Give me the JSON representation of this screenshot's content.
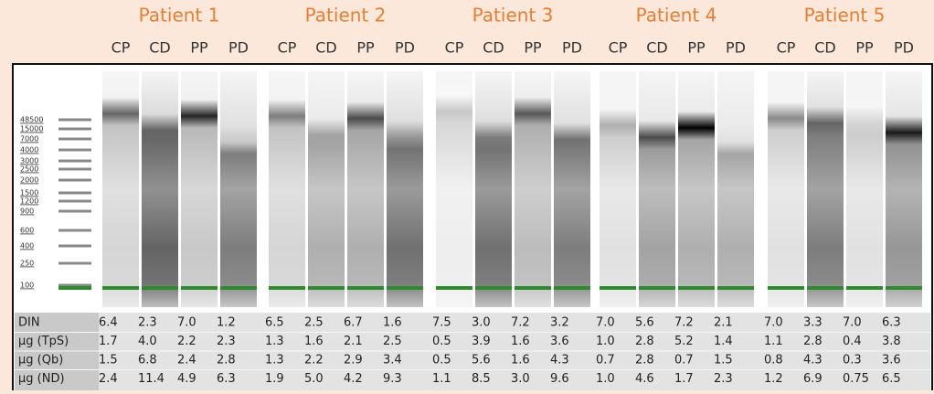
{
  "patients": [
    {
      "name": "Patient 1",
      "lanes": [
        "CP",
        "CD",
        "PP",
        "PD"
      ]
    },
    {
      "name": "Patient 2",
      "lanes": [
        "CP",
        "CD",
        "PP",
        "PD"
      ]
    },
    {
      "name": "Patient 3",
      "lanes": [
        "CP",
        "CD",
        "PP",
        "PD"
      ]
    },
    {
      "name": "Patient 4",
      "lanes": [
        "CP",
        "CD",
        "PP",
        "PD"
      ]
    },
    {
      "name": "Patient 5",
      "lanes": [
        "CP",
        "CD",
        "PP",
        "PD"
      ]
    }
  ],
  "ladder": [
    "48500",
    "15000",
    "7000",
    "4000",
    "3000",
    "2500",
    "2000",
    "1500",
    "1200",
    "900",
    "600",
    "400",
    "250",
    "100"
  ],
  "table": {
    "rows": [
      {
        "label": "DIN",
        "values": [
          "6.4",
          "2.3",
          "7.0",
          "1.2",
          "6.5",
          "2.5",
          "6.7",
          "1.6",
          "7.5",
          "3.0",
          "7.2",
          "3.2",
          "7.0",
          "5.6",
          "7.2",
          "2.1",
          "7.0",
          "3.3",
          "7.0",
          "6.3"
        ]
      },
      {
        "label": "µg (TpS)",
        "values": [
          "1.7",
          "4.0",
          "2.2",
          "2.3",
          "1.3",
          "1.6",
          "2.1",
          "2.5",
          "0.5",
          "3.9",
          "1.6",
          "3.6",
          "1.0",
          "2.8",
          "5.2",
          "1.4",
          "1.1",
          "2.8",
          "0.4",
          "3.8"
        ]
      },
      {
        "label": "µg (Qb)",
        "values": [
          "1.5",
          "6.8",
          "2.4",
          "2.8",
          "1.3",
          "2.2",
          "2.9",
          "3.4",
          "0.5",
          "5.6",
          "1.6",
          "4.3",
          "0.7",
          "2.8",
          "0.7",
          "1.5",
          "0.8",
          "4.3",
          "0.3",
          "3.6"
        ]
      },
      {
        "label": "µg (ND)",
        "values": [
          "2.4",
          "11.4",
          "4.9",
          "6.3",
          "1.9",
          "5.0",
          "4.2",
          "9.3",
          "1.1",
          "8.5",
          "3.0",
          "9.6",
          "1.0",
          "4.6",
          "1.7",
          "2.3",
          "1.2",
          "6.9",
          "0.75",
          "6.5"
        ]
      }
    ]
  }
}
